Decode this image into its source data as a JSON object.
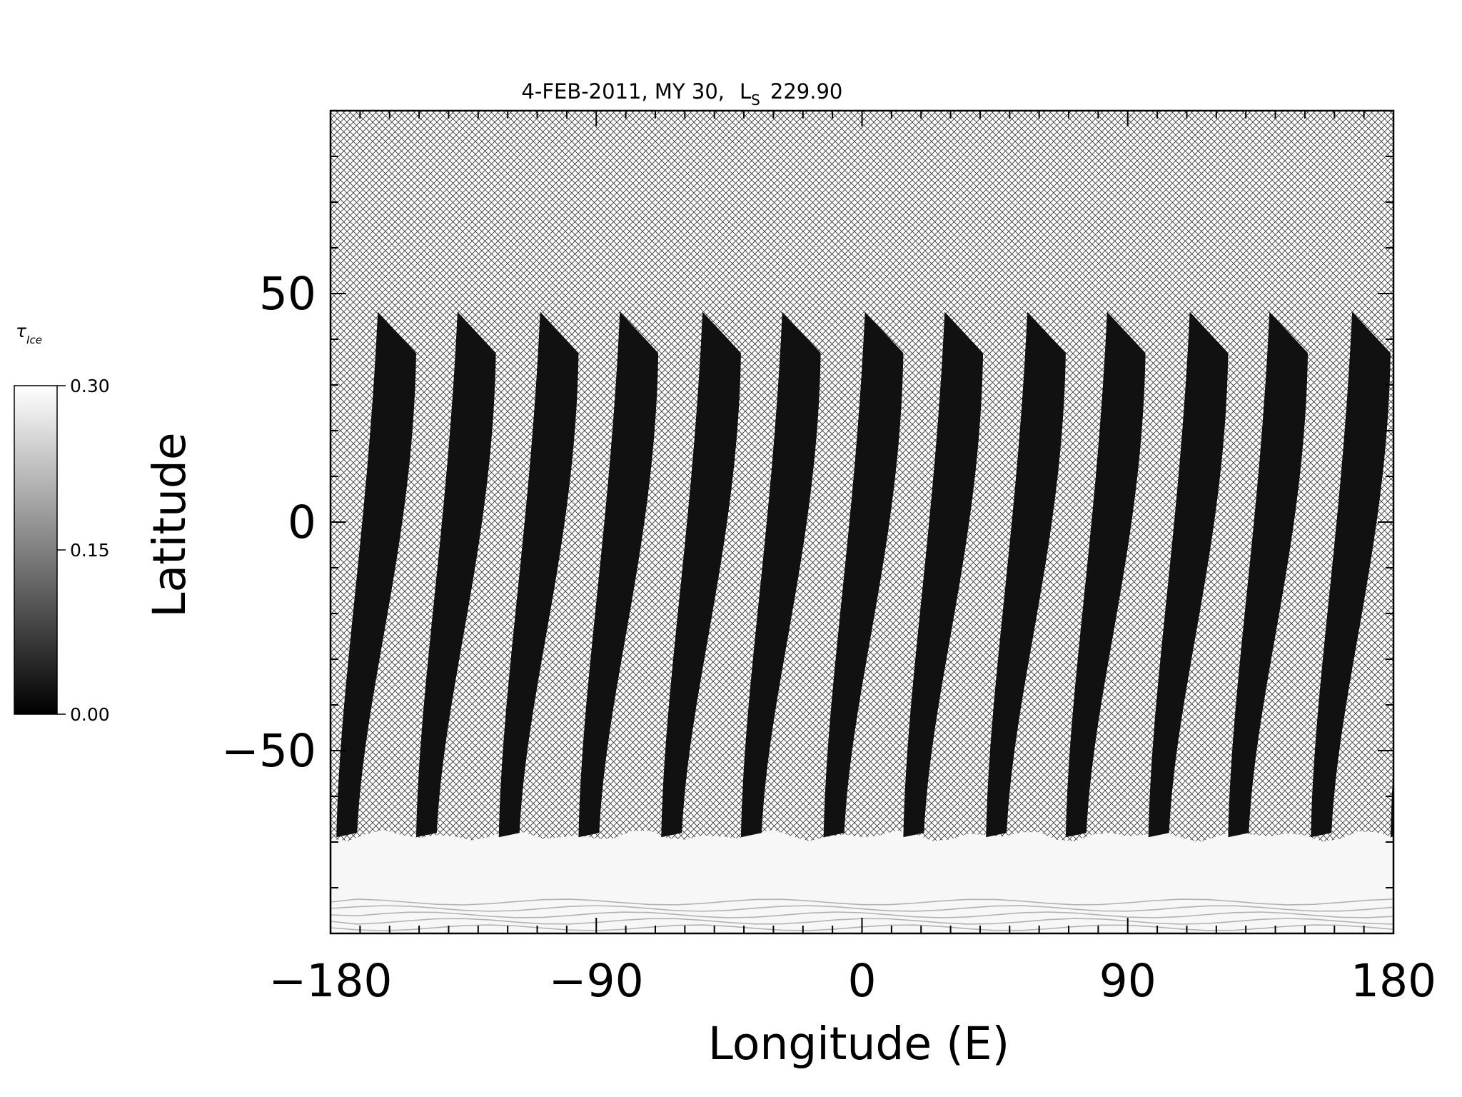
{
  "chart_data": {
    "type": "heatmap",
    "title": "4-FEB-2011, MY 30,",
    "title_ls_letter": "L",
    "title_ls_subscript": "S",
    "title_ls_value": "229.90",
    "xlabel": "Longitude (E)",
    "ylabel": "Latitude",
    "xlim": [
      -180,
      180
    ],
    "ylim": [
      -90,
      90
    ],
    "x_ticks": [
      -180,
      -90,
      0,
      90,
      180
    ],
    "x_tick_labels": [
      "−180",
      "−90",
      "0",
      "90",
      "180"
    ],
    "y_ticks": [
      -50,
      0,
      50
    ],
    "y_tick_labels": [
      "−50",
      "0",
      "50"
    ],
    "x_minor_step": 10,
    "y_minor_step": 10,
    "grid": false,
    "no_data_pattern": "cross-hatch",
    "colorbar": {
      "label_symbol": "τ",
      "label_subscript": "Ice",
      "min": 0.0,
      "max": 0.3,
      "ticks": [
        0.0,
        0.15,
        0.3
      ],
      "tick_labels": [
        "0.00",
        "0.15",
        "0.30"
      ],
      "colormap": "grayscale",
      "color_min": "#000000",
      "color_max": "#ffffff",
      "placement": "left"
    },
    "swaths": {
      "description_units": "degrees longitude / latitude",
      "north_edge_lat": 46,
      "north_edge_right_lat": 37,
      "south_edge_lat": -68,
      "width_at_north_deg": 13,
      "width_at_south_deg": 7,
      "tilt_offset_deg": 14,
      "south_lons": [
        -178,
        -151,
        -123,
        -96,
        -68,
        -41,
        -13,
        14,
        42,
        69,
        97,
        124,
        152,
        179
      ],
      "typical_value": 0.02,
      "polar_hood_lat_range": [
        -90,
        -68
      ],
      "polar_hood_value": 0.3
    }
  }
}
